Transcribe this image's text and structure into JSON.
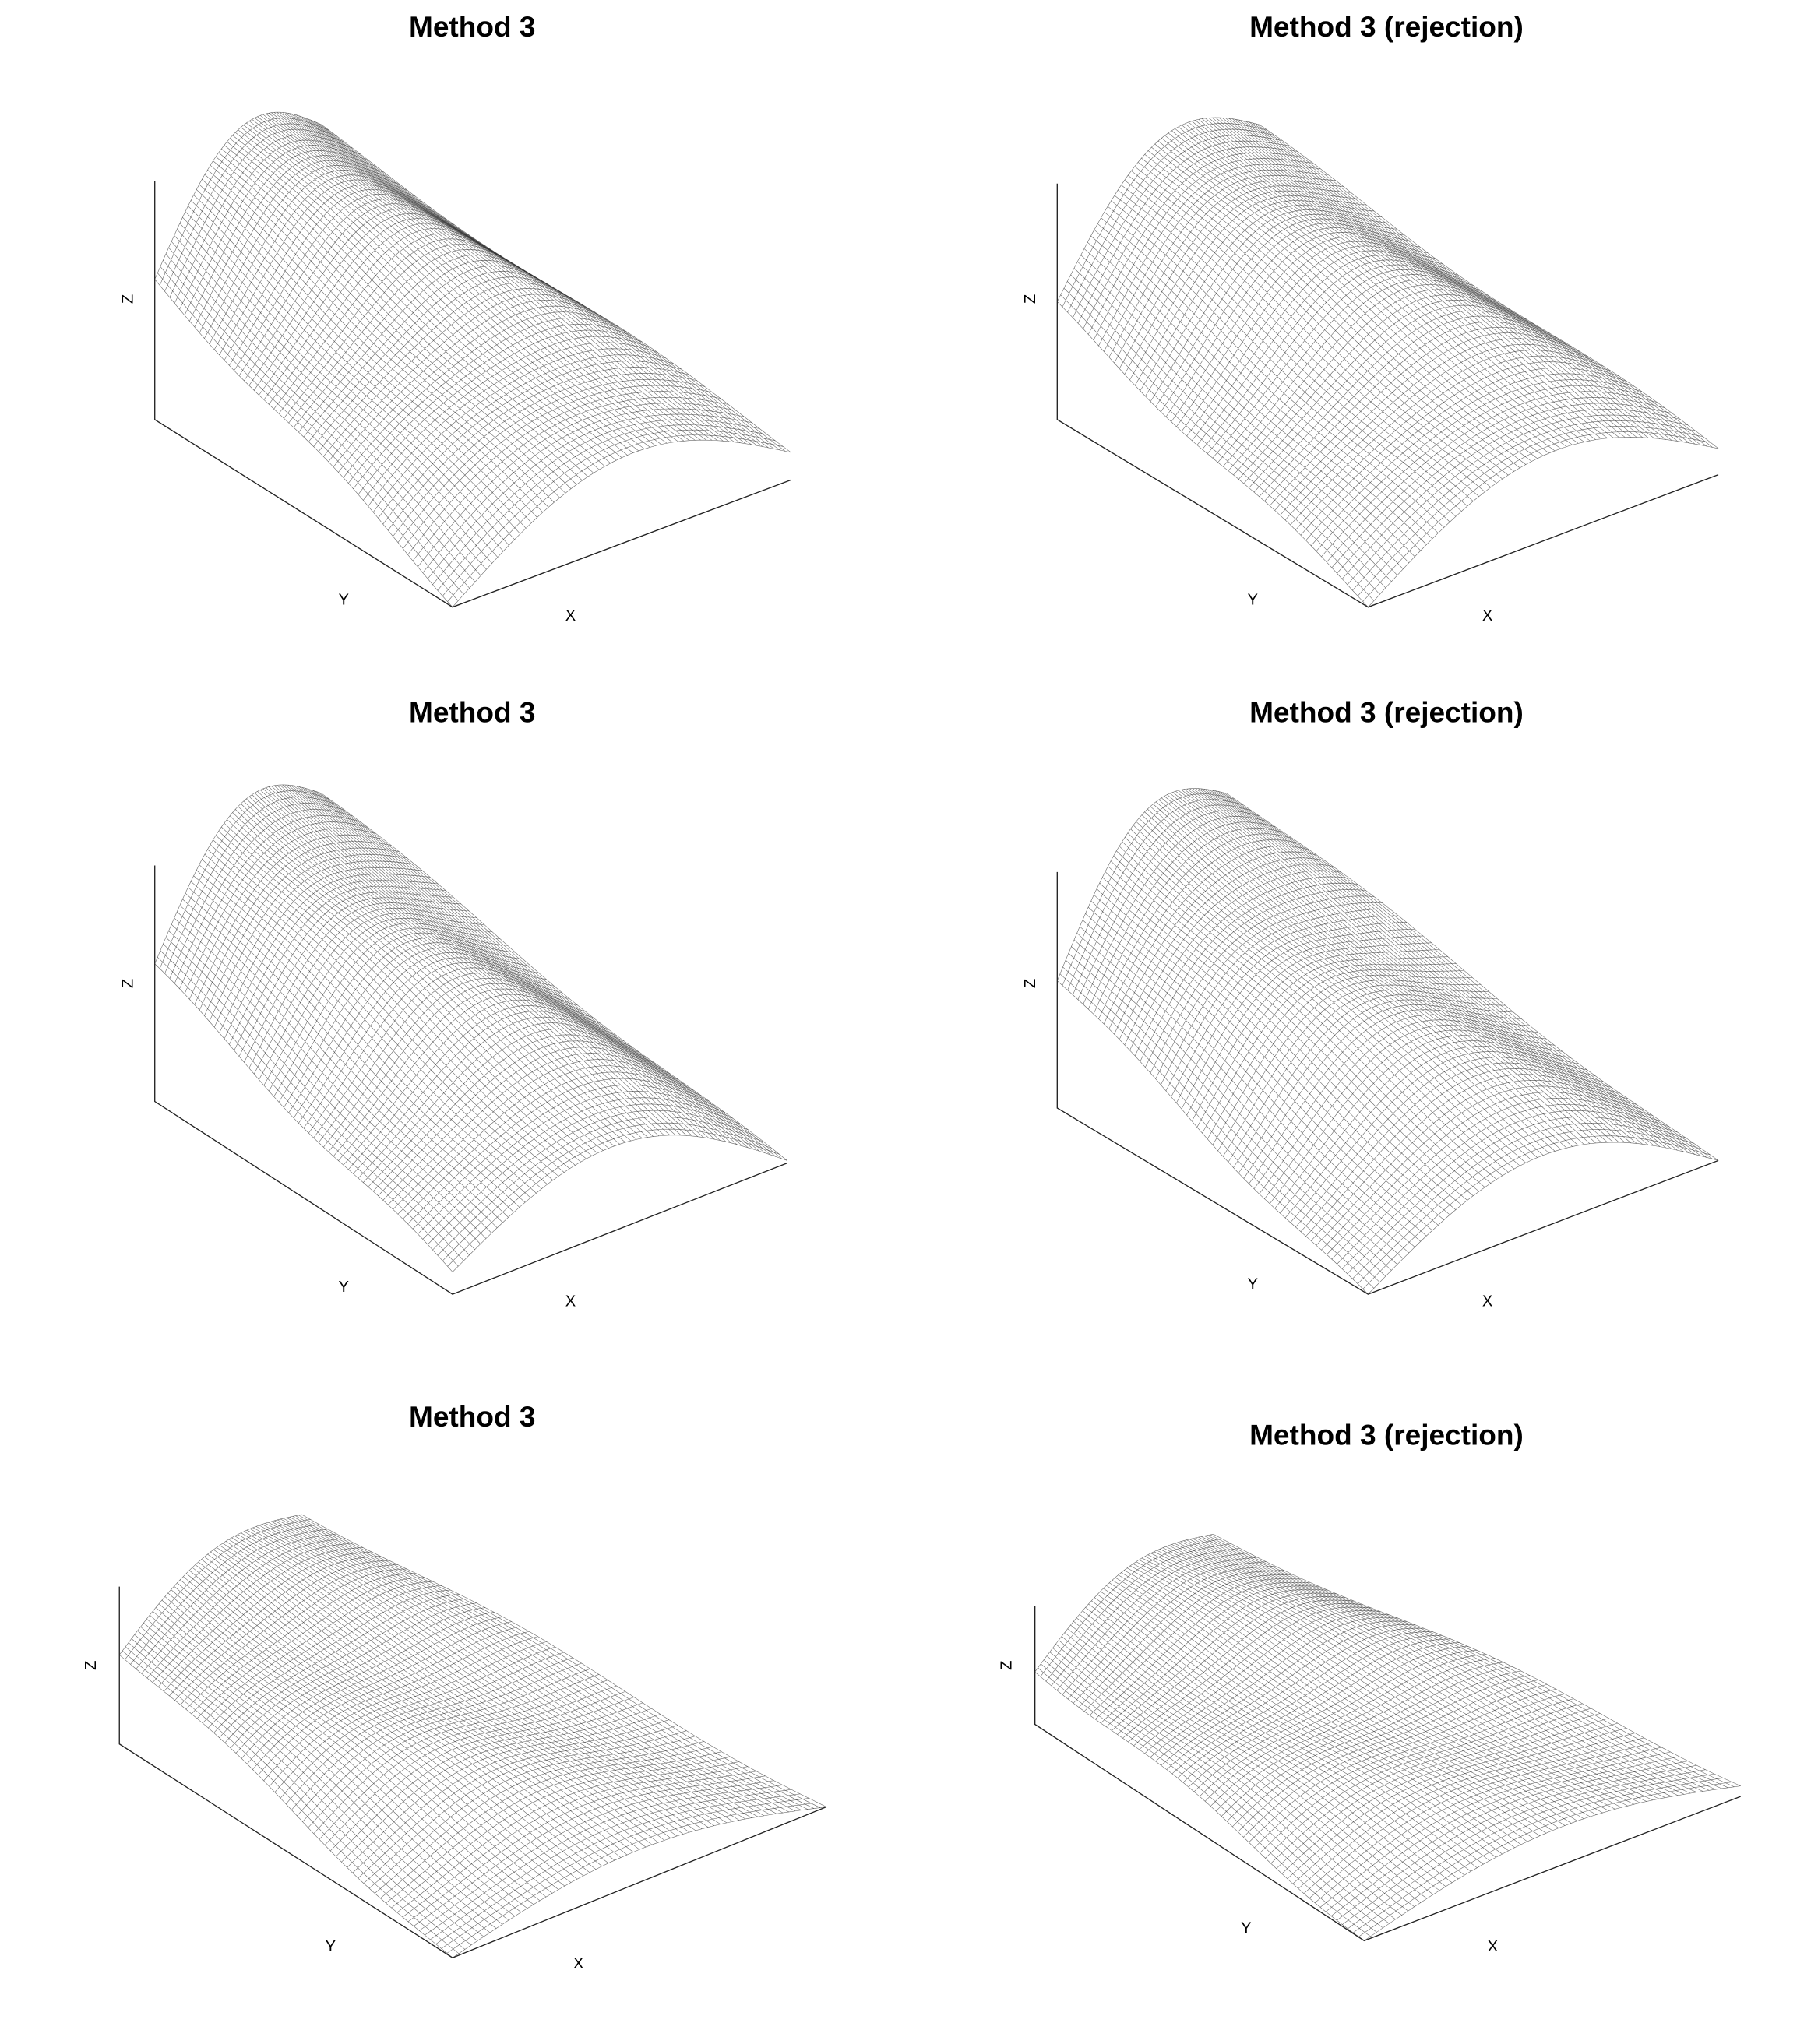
{
  "panels": [
    {
      "title": "Method 3",
      "x_label": "X",
      "y_label": "Y",
      "z_label": "Z"
    },
    {
      "title": "Method 3 (rejection)",
      "x_label": "X",
      "y_label": "Y",
      "z_label": "Z"
    },
    {
      "title": "Method 3",
      "x_label": "X",
      "y_label": "Y",
      "z_label": "Z"
    },
    {
      "title": "Method 3 (rejection)",
      "x_label": "X",
      "y_label": "Y",
      "z_label": "Z"
    },
    {
      "title": "Method 3",
      "x_label": "X",
      "y_label": "Y",
      "z_label": "Z"
    },
    {
      "title": "Method 3 (rejection)",
      "x_label": "X",
      "y_label": "Y",
      "z_label": "Z"
    }
  ]
}
